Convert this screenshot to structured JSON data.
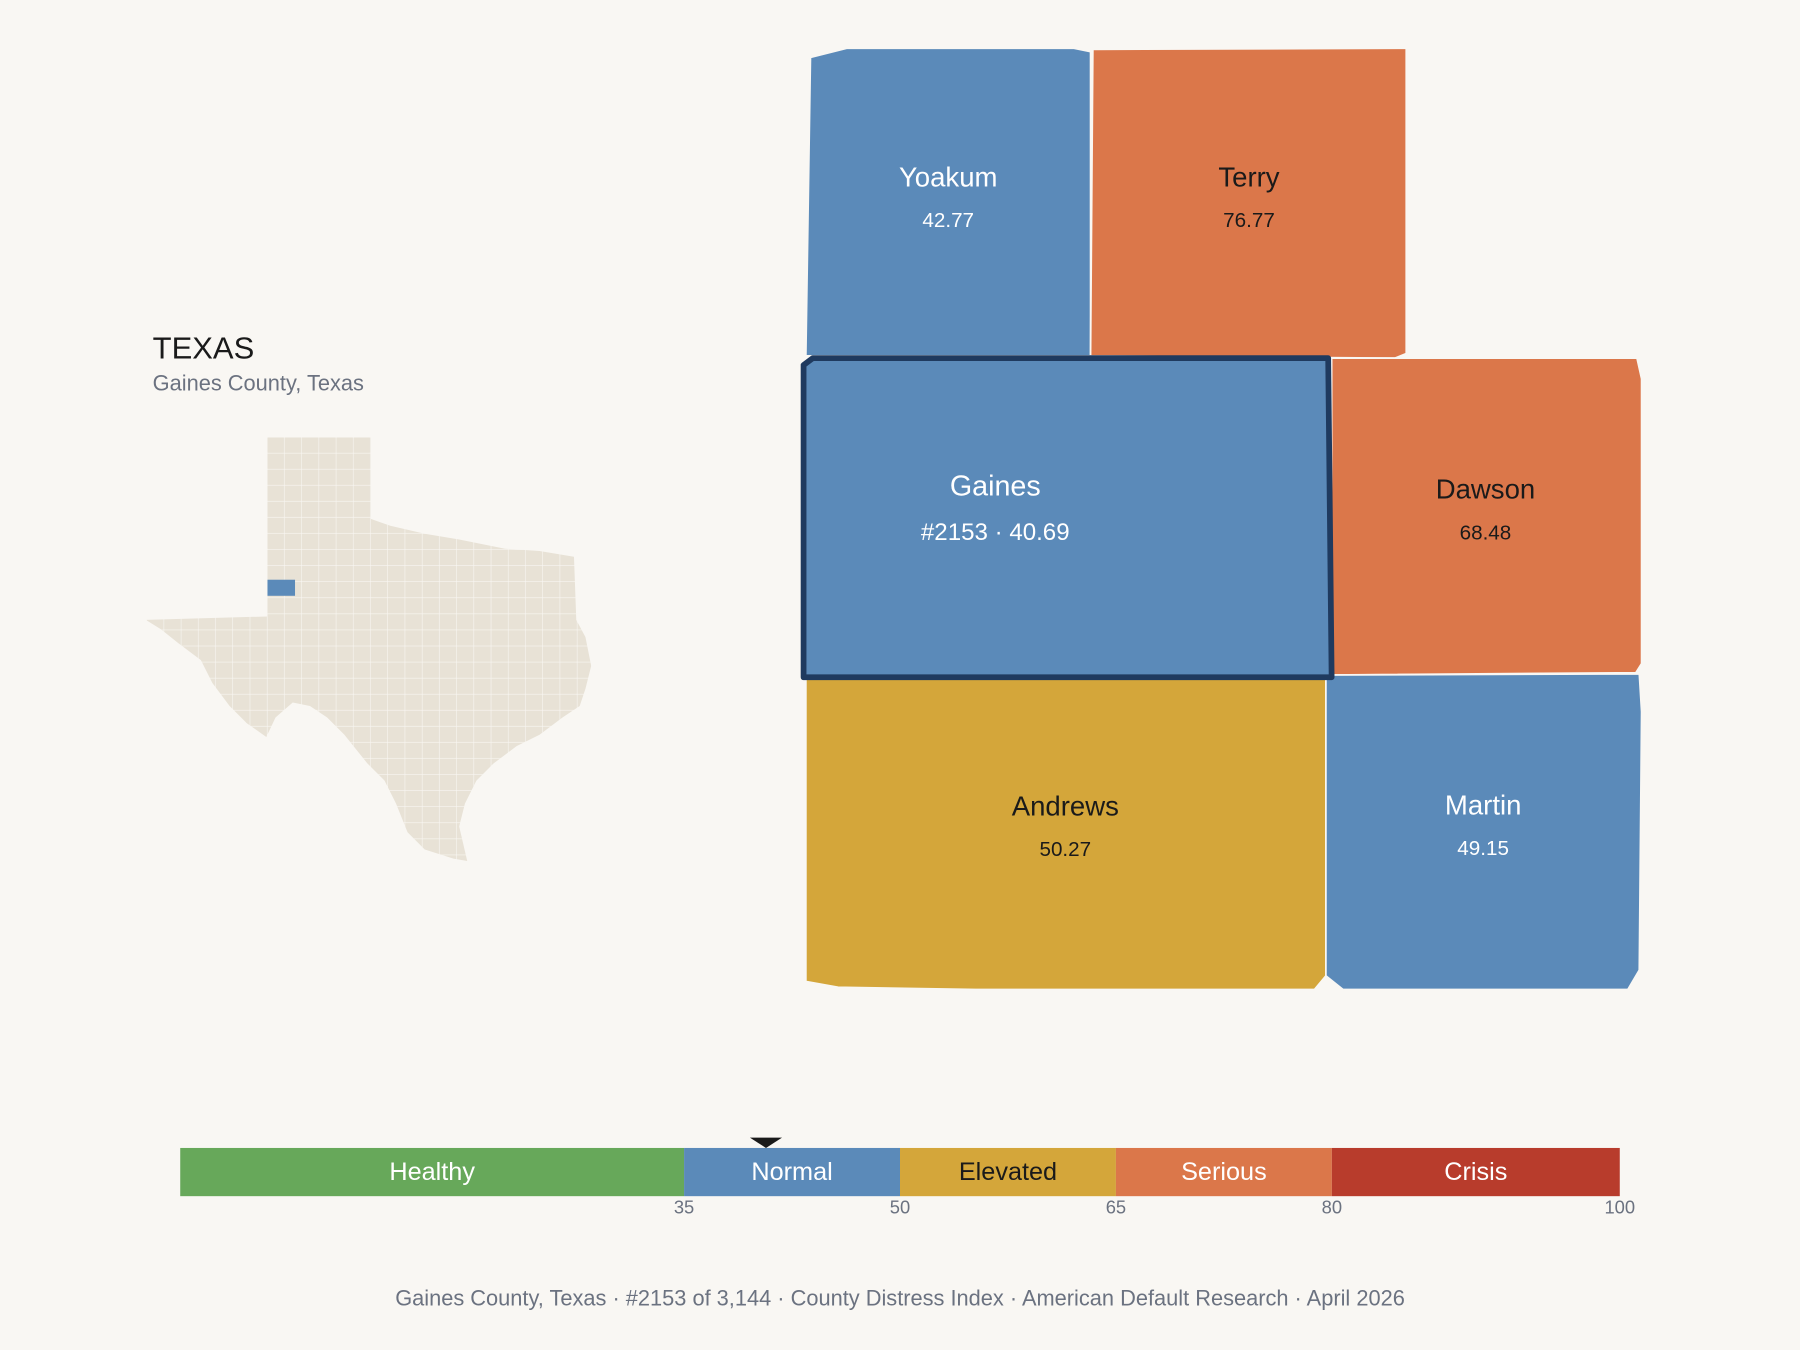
{
  "state": {
    "title": "TEXAS",
    "subtitle": "Gaines County, Texas"
  },
  "counties": [
    {
      "name": "Yoakum",
      "value": 42.77
    },
    {
      "name": "Terry",
      "value": 76.77
    },
    {
      "name": "Gaines",
      "value": 40.69,
      "value_label": "#2153 · 40.69",
      "selected": true
    },
    {
      "name": "Dawson",
      "value": 68.48
    },
    {
      "name": "Andrews",
      "value": 50.27
    },
    {
      "name": "Martin",
      "value": 49.15
    }
  ],
  "scale": {
    "xlim": [
      0,
      100
    ],
    "xticks": [
      35,
      50,
      65,
      80,
      100
    ],
    "bands": [
      {
        "name": "Healthy",
        "color": "#67a85a"
      },
      {
        "name": "Normal",
        "color": "#5b8ab9"
      },
      {
        "name": "Elevated",
        "color": "#d4a63a"
      },
      {
        "name": "Serious",
        "color": "#db774a"
      },
      {
        "name": "Crisis",
        "color": "#b83c2c"
      }
    ]
  },
  "footer": "Gaines County, Texas  ·  #2153 of 3,144  ·  County Distress Index  ·  American Default Research  ·  April 2026"
}
